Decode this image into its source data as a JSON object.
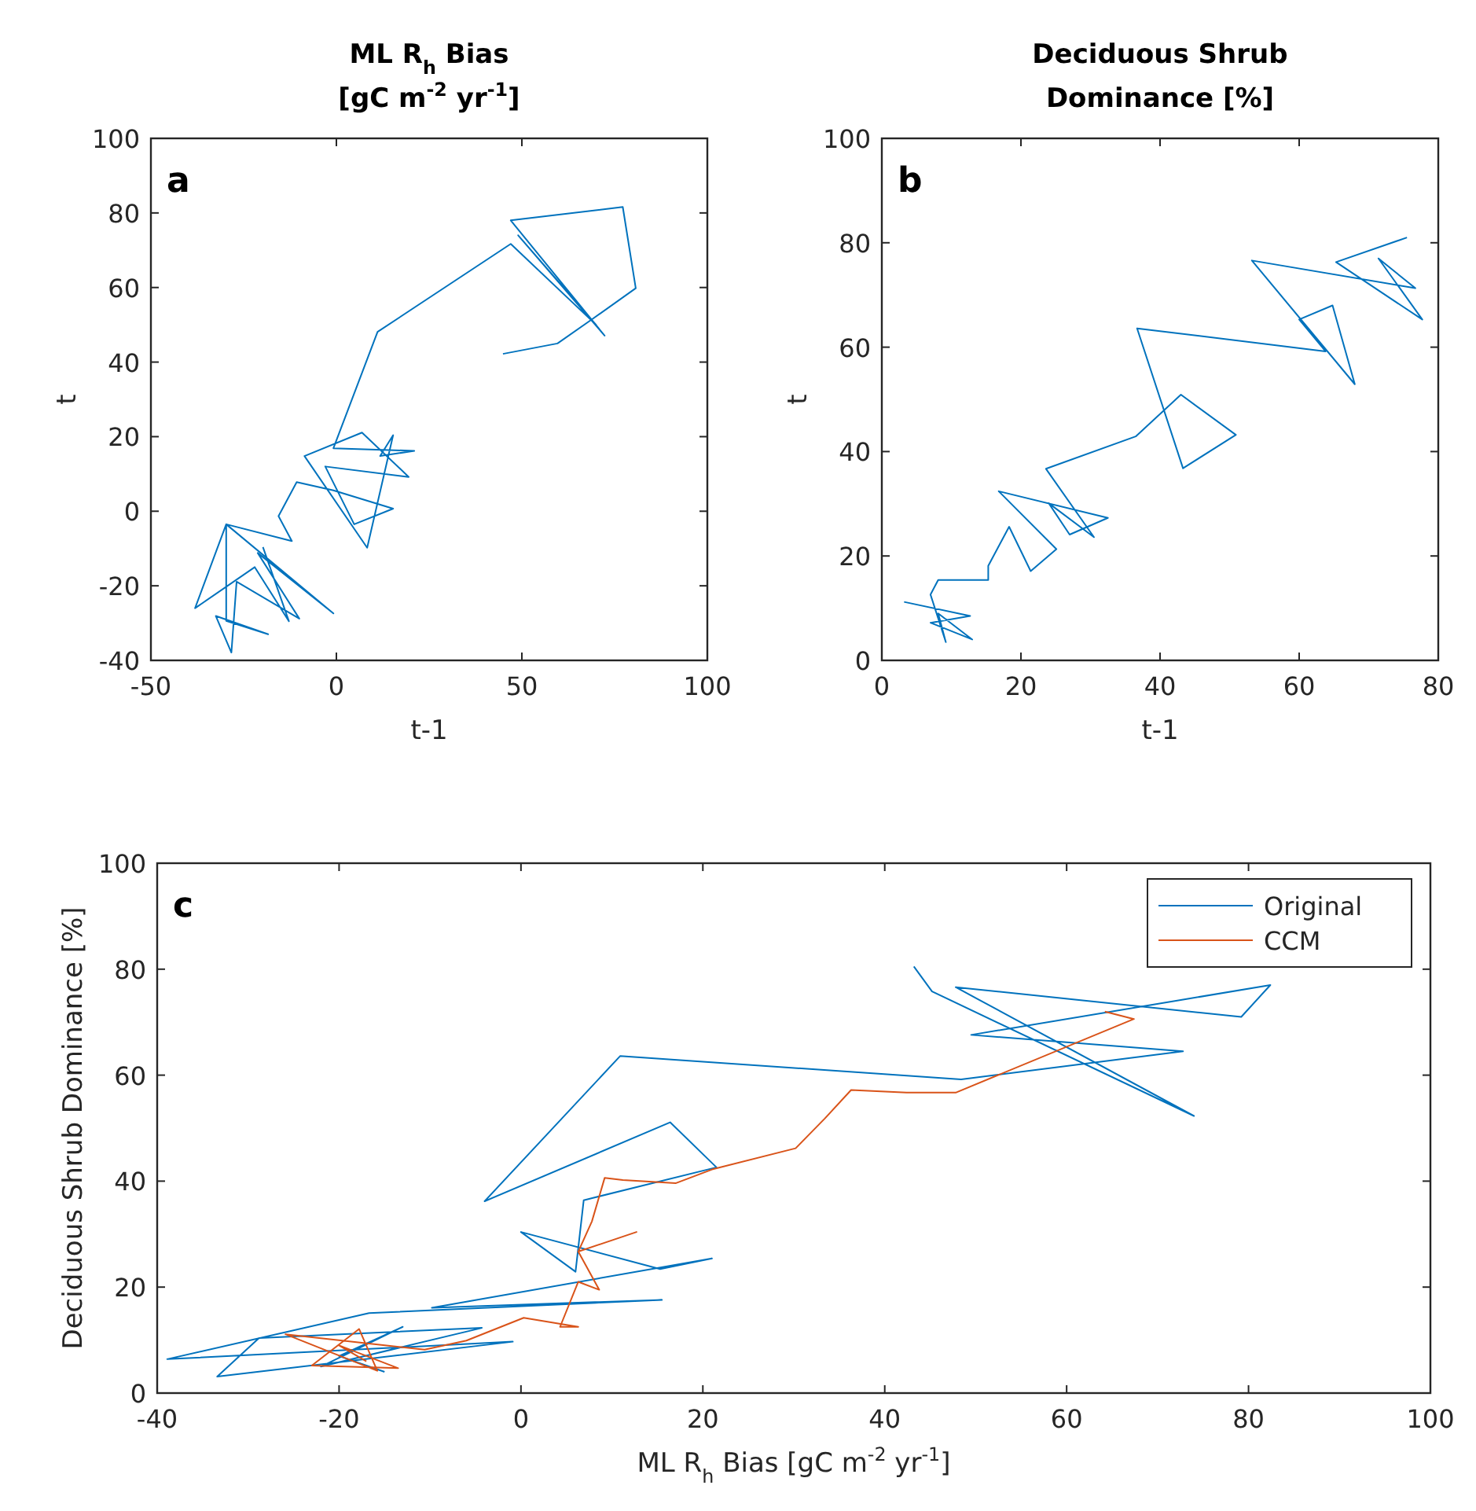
{
  "chart_data": [
    {
      "type": "line",
      "title": "ML R$_{h}$ Bias\n[gC m$^{-2}$ yr$^{-1}$]",
      "xlabel": "t-1",
      "ylabel": "t",
      "annotations": [
        "a"
      ],
      "xlim": [
        -50,
        100
      ],
      "ylim": [
        -40,
        100
      ],
      "xticks": [
        -50,
        0,
        50,
        100
      ],
      "yticks": [
        -40,
        -20,
        0,
        20,
        40,
        60,
        80,
        100
      ],
      "series": [
        {
          "color": "#0072bd",
          "x": [
            44.9,
            59.6,
            68.8,
            80.7,
            77.2,
            47,
            72.3,
            49,
            70,
            47,
            11.1,
            -0.8,
            21,
            11.8,
            15.3,
            8.3,
            -8.6,
            6.9,
            19.5,
            -3,
            4.8,
            15.3,
            -0.8,
            -10.7,
            -15.6,
            -12,
            -29.7,
            -0.8,
            -21.2,
            -10,
            -26.9,
            -28.3,
            -32.5,
            -18.4,
            -29.7,
            -29.7,
            -38.1,
            -22,
            -12.8,
            -19.8
          ],
          "values": [
            42.2,
            45,
            51.4,
            59.8,
            81.6,
            78,
            47.1,
            74,
            50,
            71.7,
            48.1,
            16.9,
            16.2,
            14.8,
            20.4,
            -9.8,
            14.8,
            21.1,
            9.2,
            12,
            -3.5,
            0.7,
            5.6,
            7.8,
            -1.3,
            -8,
            -3.5,
            -27.4,
            -11.2,
            -28.8,
            -18.9,
            -37.9,
            -28.1,
            -33,
            -29.4,
            -3.5,
            -26,
            -15,
            -29.5,
            -9.6
          ]
        }
      ]
    },
    {
      "type": "line",
      "title": "Deciduous Shrub\nDominance  [%]",
      "xlabel": "t-1",
      "ylabel": "t",
      "annotations": [
        "b"
      ],
      "xlim": [
        0,
        80
      ],
      "ylim": [
        0,
        100
      ],
      "xticks": [
        0,
        20,
        40,
        60,
        80
      ],
      "yticks": [
        0,
        20,
        40,
        60,
        80,
        100
      ],
      "series": [
        {
          "color": "#0072bd",
          "x": [
            3.2,
            12.7,
            7,
            13,
            8.1,
            9.2,
            7,
            8.1,
            15.3,
            15.3,
            18.3,
            21.4,
            25.1,
            16.8,
            32.5,
            27,
            24,
            30.5,
            23.6,
            36.5,
            43,
            50.9,
            43.3,
            36.7,
            63.8,
            60,
            64.8,
            68,
            53.2,
            76.7,
            71.4,
            77.7,
            65.3,
            75.5
          ],
          "values": [
            11.2,
            8.5,
            7.2,
            4,
            9,
            3.5,
            12.6,
            15.4,
            15.4,
            18.1,
            25.6,
            17.1,
            21.3,
            32.4,
            27.3,
            24.1,
            30.1,
            23.6,
            36.7,
            42.9,
            50.9,
            43.2,
            36.8,
            63.6,
            59.2,
            65.3,
            68,
            52.9,
            76.6,
            71.3,
            77,
            65.3,
            76.3,
            81
          ]
        }
      ]
    },
    {
      "type": "line",
      "xlabel": "ML R$_{h}$ Bias [gC m$^{-2}$ yr$^{-1}$]",
      "ylabel": "Deciduous Shrub Dominance [%]",
      "annotations": [
        "c"
      ],
      "legend": "top right",
      "xlim": [
        -40,
        100
      ],
      "ylim": [
        0,
        100
      ],
      "xticks": [
        -40,
        -20,
        0,
        20,
        40,
        60,
        80,
        100
      ],
      "yticks": [
        0,
        20,
        40,
        60,
        80,
        100
      ],
      "series": [
        {
          "name": "Original",
          "color": "#0072bd",
          "x": [
            43.2,
            45.2,
            74,
            47.8,
            79.2,
            82.4,
            49.5,
            72.8,
            48.4,
            10.9,
            -4,
            16.4,
            21.5,
            6.9,
            6,
            0,
            15.3,
            21,
            -9.8,
            15.5,
            -16.7,
            -38.9,
            -0.9,
            -33.4,
            -28.8,
            -4.3,
            -22,
            -13,
            -20,
            -15
          ],
          "values": [
            80.5,
            75.8,
            52.3,
            76.6,
            71,
            77,
            67.6,
            64.5,
            59.2,
            63.6,
            36.2,
            51.1,
            42.6,
            36.4,
            22.9,
            30.4,
            23.4,
            25.4,
            16.1,
            17.6,
            15.1,
            6.4,
            9.7,
            3.1,
            10.4,
            12.3,
            5,
            12.5,
            7,
            4
          ]
        },
        {
          "name": "CCM",
          "color": "#d95319",
          "x": [
            64.2,
            67.4,
            47.8,
            42.4,
            36.3,
            33.4,
            30.2,
            21,
            17,
            11.2,
            9.2,
            7.8,
            6.3,
            12.7,
            6.3,
            8.6,
            6.3,
            4.3,
            6.3,
            0.3,
            -6,
            -10.6,
            -25.9,
            -15.8,
            -17.8,
            -23,
            -13.5,
            -20,
            -17
          ],
          "values": [
            72,
            70.6,
            56.7,
            56.7,
            57.2,
            51.8,
            46.2,
            42.2,
            39.6,
            40.2,
            40.6,
            32.4,
            26.7,
            30.4,
            26.7,
            19.5,
            21,
            12.5,
            12.5,
            14.2,
            9.9,
            8.2,
            11.1,
            4.2,
            12.1,
            5.2,
            4.7,
            9,
            6
          ]
        }
      ]
    }
  ]
}
